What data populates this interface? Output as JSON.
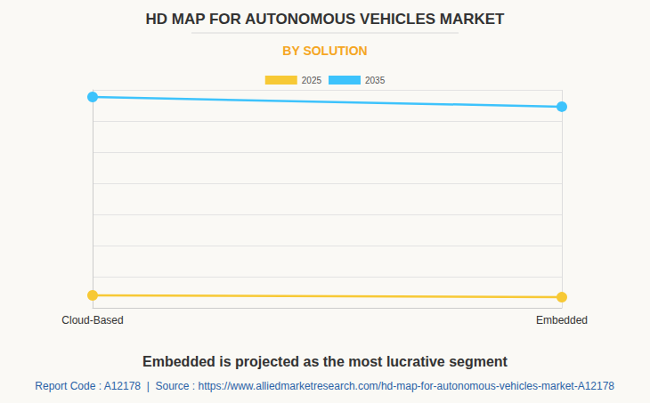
{
  "chart_data": {
    "type": "line",
    "title": "HD MAP FOR AUTONOMOUS VEHICLES MARKET",
    "subtitle": "BY SOLUTION",
    "categories": [
      "Cloud-Based",
      "Embedded"
    ],
    "series": [
      {
        "name": "2025",
        "color": "#f7c935",
        "values": [
          0.4,
          0.34
        ]
      },
      {
        "name": "2035",
        "color": "#3dc3fc",
        "values": [
          6.77,
          6.46
        ]
      }
    ],
    "ylim": [
      0,
      7
    ],
    "yticks": [
      0,
      1,
      2,
      3,
      4,
      5,
      6,
      7
    ],
    "grid": true,
    "tick_labels": "x",
    "legend": "top",
    "marker": "circle",
    "annotations": [
      "Embedded is projected as the most lucrative segment",
      "Report Code : A12178  |  Source : https://www.alliedmarketresearch.com/hd-map-for-autonomous-vehicles-market-A12178"
    ]
  }
}
